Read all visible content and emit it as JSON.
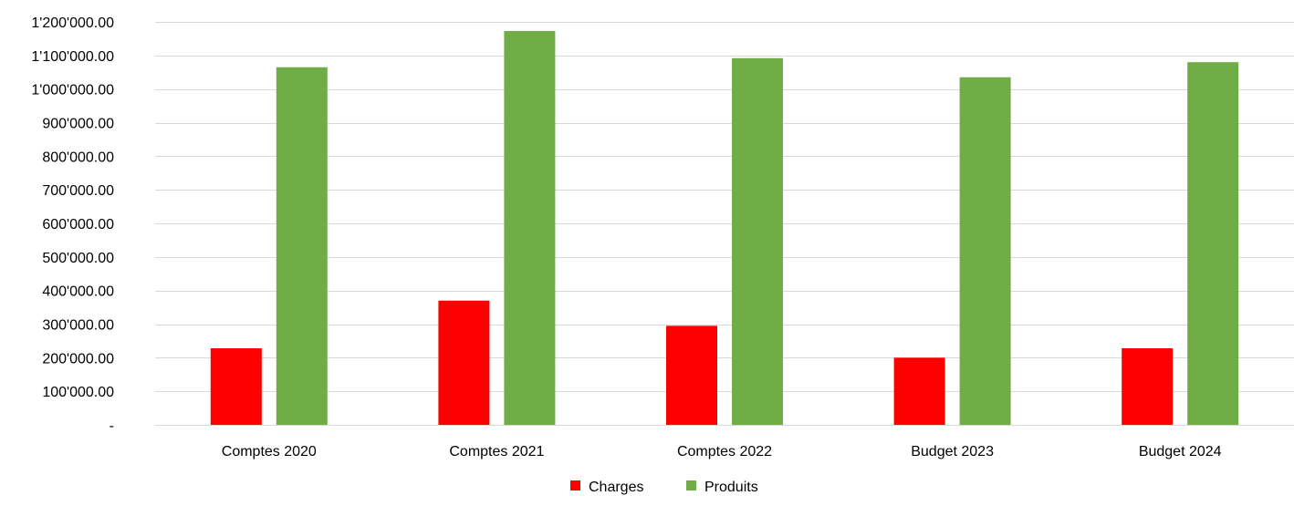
{
  "chart_data": {
    "type": "bar",
    "title": "",
    "xlabel": "",
    "ylabel": "",
    "categories": [
      "Comptes 2020",
      "Comptes 2021",
      "Comptes 2022",
      "Budget 2023",
      "Budget 2024"
    ],
    "series": [
      {
        "name": "Charges",
        "color": "#ff0000",
        "values": [
          228000,
          370000,
          295000,
          200000,
          228000
        ]
      },
      {
        "name": "Produits",
        "color": "#70ad47",
        "values": [
          1065000,
          1173000,
          1092000,
          1035000,
          1080000
        ]
      }
    ],
    "ylim": [
      0,
      1200000
    ],
    "yticks": [
      0,
      100000,
      200000,
      300000,
      400000,
      500000,
      600000,
      700000,
      800000,
      900000,
      1000000,
      1100000,
      1200000
    ],
    "ytick_labels": [
      "-",
      "100'000.00",
      "200'000.00",
      "300'000.00",
      "400'000.00",
      "500'000.00",
      "600'000.00",
      "700'000.00",
      "800'000.00",
      "900'000.00",
      "1'000'000.00",
      "1'100'000.00",
      "1'200'000.00"
    ],
    "grid": true,
    "legend_position": "bottom"
  }
}
